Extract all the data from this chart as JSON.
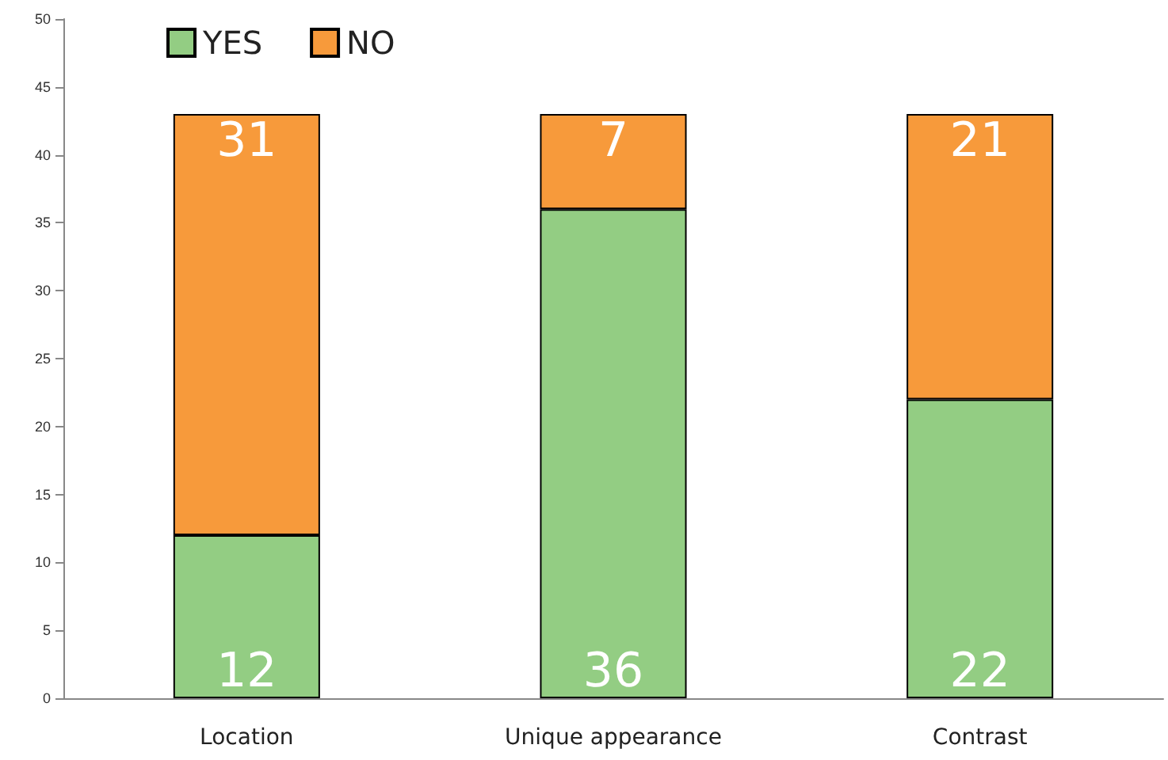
{
  "chart_data": {
    "type": "bar",
    "stacked": true,
    "categories": [
      "Location",
      "Unique appearance",
      "Contrast"
    ],
    "series": [
      {
        "name": "YES",
        "color": "#93cd83",
        "values": [
          12,
          36,
          22
        ]
      },
      {
        "name": "NO",
        "color": "#f79a3b",
        "values": [
          31,
          7,
          21
        ]
      }
    ],
    "ylim": [
      0,
      50
    ],
    "yticks": [
      0,
      5,
      10,
      15,
      20,
      25,
      30,
      35,
      40,
      45,
      50
    ],
    "grid": false,
    "legend": "top left",
    "data_labels": true
  }
}
